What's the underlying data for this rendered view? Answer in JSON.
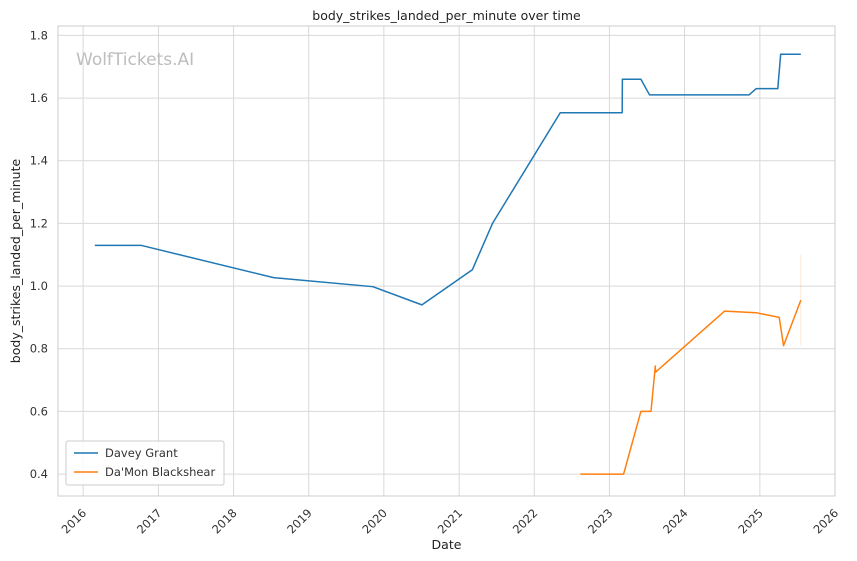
{
  "chart_data": {
    "type": "line",
    "title": "body_strikes_landed_per_minute over time",
    "xlabel": "Date",
    "ylabel": "body_strikes_landed_per_minute",
    "watermark": "WolfTickets.AI",
    "xlim": [
      "2015-09-01",
      "2026-01-01"
    ],
    "ylim": [
      0.33,
      1.83
    ],
    "x_ticks": [
      "2016",
      "2017",
      "2018",
      "2019",
      "2020",
      "2021",
      "2022",
      "2023",
      "2024",
      "2025",
      "2026"
    ],
    "y_ticks": [
      "0.4",
      "0.6",
      "0.8",
      "1.0",
      "1.2",
      "1.4",
      "1.6",
      "1.8"
    ],
    "grid": true,
    "legend_position": "lower-left",
    "series": [
      {
        "name": "Davey Grant",
        "color": "#1f77b4",
        "points": [
          [
            "2016-02-27",
            1.13
          ],
          [
            "2016-10-08",
            1.13
          ],
          [
            "2018-07-14",
            1.027
          ],
          [
            "2019-11-09",
            0.998
          ],
          [
            "2020-07-04",
            0.94
          ],
          [
            "2021-03-06",
            1.052
          ],
          [
            "2021-06-12",
            1.2
          ],
          [
            "2022-05-07",
            1.553
          ],
          [
            "2023-03-04",
            1.553
          ],
          [
            "2023-03-05",
            1.66
          ],
          [
            "2023-06-03",
            1.66
          ],
          [
            "2023-07-15",
            1.61
          ],
          [
            "2024-11-09",
            1.61
          ],
          [
            "2024-12-14",
            1.63
          ],
          [
            "2025-03-29",
            1.63
          ],
          [
            "2025-04-12",
            1.74
          ],
          [
            "2025-07-19",
            1.74
          ]
        ]
      },
      {
        "name": "Da'Mon Blackshear",
        "color": "#ff7f0e",
        "points": [
          [
            "2022-08-13",
            0.4
          ],
          [
            "2023-03-11",
            0.4
          ],
          [
            "2023-06-03",
            0.6
          ],
          [
            "2023-07-22",
            0.6
          ],
          [
            "2023-08-12",
            0.745
          ],
          [
            "2023-08-13",
            0.725
          ],
          [
            "2024-07-13",
            0.92
          ],
          [
            "2024-12-14",
            0.915
          ],
          [
            "2025-04-05",
            0.9
          ],
          [
            "2025-04-26",
            0.81
          ],
          [
            "2025-07-19",
            0.955
          ]
        ]
      }
    ]
  }
}
